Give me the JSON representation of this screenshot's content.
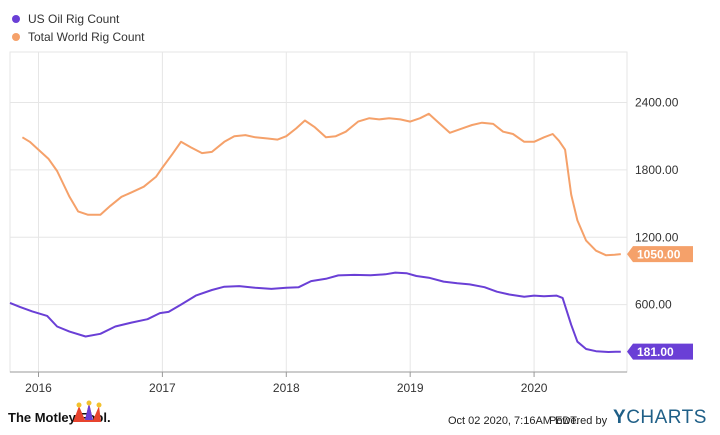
{
  "chart_data": {
    "type": "line",
    "title": "",
    "xlabel": "",
    "ylabel": "",
    "ylim": [
      0,
      2850
    ],
    "y_ticks": [
      600,
      1200,
      1800,
      2400
    ],
    "y_tick_labels": [
      "600.00",
      "1200.00",
      "1800.00",
      "2400.00"
    ],
    "x_ticks": [
      2016,
      2017,
      2018,
      2019,
      2020
    ],
    "x_tick_labels": [
      "2016",
      "2017",
      "2018",
      "2019",
      "2020"
    ],
    "xlim": [
      2015.77,
      2020.75
    ],
    "grid": true,
    "legend_position": "top-left",
    "series": [
      {
        "name": "US Oil Rig Count",
        "color": "#6a3fd6",
        "last_value_label": "181.00",
        "points": [
          [
            2015.77,
            615
          ],
          [
            2015.85,
            580
          ],
          [
            2015.95,
            540
          ],
          [
            2016.07,
            500
          ],
          [
            2016.15,
            405
          ],
          [
            2016.25,
            360
          ],
          [
            2016.38,
            316
          ],
          [
            2016.5,
            340
          ],
          [
            2016.62,
            405
          ],
          [
            2016.75,
            440
          ],
          [
            2016.88,
            470
          ],
          [
            2016.98,
            525
          ],
          [
            2017.05,
            535
          ],
          [
            2017.15,
            600
          ],
          [
            2017.27,
            680
          ],
          [
            2017.4,
            730
          ],
          [
            2017.5,
            760
          ],
          [
            2017.62,
            765
          ],
          [
            2017.75,
            750
          ],
          [
            2017.88,
            740
          ],
          [
            2018.0,
            750
          ],
          [
            2018.1,
            755
          ],
          [
            2018.2,
            810
          ],
          [
            2018.32,
            830
          ],
          [
            2018.42,
            860
          ],
          [
            2018.55,
            865
          ],
          [
            2018.68,
            862
          ],
          [
            2018.8,
            870
          ],
          [
            2018.88,
            885
          ],
          [
            2018.97,
            880
          ],
          [
            2019.05,
            855
          ],
          [
            2019.15,
            840
          ],
          [
            2019.27,
            805
          ],
          [
            2019.38,
            790
          ],
          [
            2019.48,
            780
          ],
          [
            2019.6,
            755
          ],
          [
            2019.7,
            715
          ],
          [
            2019.8,
            690
          ],
          [
            2019.92,
            670
          ],
          [
            2020.0,
            680
          ],
          [
            2020.08,
            675
          ],
          [
            2020.18,
            680
          ],
          [
            2020.23,
            660
          ],
          [
            2020.3,
            420
          ],
          [
            2020.35,
            270
          ],
          [
            2020.42,
            205
          ],
          [
            2020.5,
            185
          ],
          [
            2020.6,
            178
          ],
          [
            2020.66,
            180
          ],
          [
            2020.7,
            181
          ]
        ]
      },
      {
        "name": "Total World Rig Count",
        "color": "#f5a16a",
        "last_value_label": "1050.00",
        "points": [
          [
            2015.87,
            2090
          ],
          [
            2015.93,
            2050
          ],
          [
            2016.0,
            1980
          ],
          [
            2016.08,
            1900
          ],
          [
            2016.15,
            1790
          ],
          [
            2016.25,
            1560
          ],
          [
            2016.32,
            1430
          ],
          [
            2016.4,
            1400
          ],
          [
            2016.5,
            1400
          ],
          [
            2016.58,
            1480
          ],
          [
            2016.67,
            1560
          ],
          [
            2016.75,
            1600
          ],
          [
            2016.85,
            1650
          ],
          [
            2016.95,
            1740
          ],
          [
            2017.0,
            1820
          ],
          [
            2017.08,
            1940
          ],
          [
            2017.15,
            2050
          ],
          [
            2017.23,
            2000
          ],
          [
            2017.32,
            1950
          ],
          [
            2017.4,
            1960
          ],
          [
            2017.5,
            2050
          ],
          [
            2017.58,
            2100
          ],
          [
            2017.67,
            2110
          ],
          [
            2017.75,
            2090
          ],
          [
            2017.85,
            2080
          ],
          [
            2017.93,
            2070
          ],
          [
            2018.0,
            2100
          ],
          [
            2018.08,
            2170
          ],
          [
            2018.15,
            2240
          ],
          [
            2018.23,
            2180
          ],
          [
            2018.32,
            2090
          ],
          [
            2018.4,
            2100
          ],
          [
            2018.48,
            2140
          ],
          [
            2018.58,
            2230
          ],
          [
            2018.67,
            2260
          ],
          [
            2018.75,
            2250
          ],
          [
            2018.83,
            2260
          ],
          [
            2018.92,
            2250
          ],
          [
            2019.0,
            2230
          ],
          [
            2019.08,
            2260
          ],
          [
            2019.15,
            2300
          ],
          [
            2019.23,
            2220
          ],
          [
            2019.32,
            2130
          ],
          [
            2019.42,
            2170
          ],
          [
            2019.5,
            2200
          ],
          [
            2019.58,
            2220
          ],
          [
            2019.67,
            2210
          ],
          [
            2019.75,
            2140
          ],
          [
            2019.83,
            2120
          ],
          [
            2019.92,
            2050
          ],
          [
            2020.0,
            2050
          ],
          [
            2020.08,
            2090
          ],
          [
            2020.15,
            2120
          ],
          [
            2020.2,
            2060
          ],
          [
            2020.25,
            1980
          ],
          [
            2020.3,
            1580
          ],
          [
            2020.35,
            1350
          ],
          [
            2020.42,
            1170
          ],
          [
            2020.5,
            1080
          ],
          [
            2020.58,
            1040
          ],
          [
            2020.65,
            1045
          ],
          [
            2020.7,
            1050
          ]
        ]
      }
    ]
  },
  "footer": {
    "brand": "The Motley Fool.",
    "timestamp": "Oct 02 2020, 7:16AM EDT.",
    "powered_by": "Powered by",
    "ycharts_y": "Y",
    "ycharts_rest": "CHARTS"
  }
}
